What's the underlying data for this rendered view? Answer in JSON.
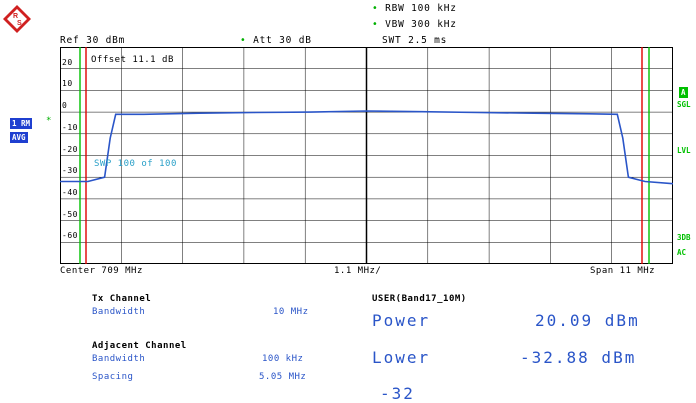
{
  "header": {
    "rbw": "RBW 100 kHz",
    "vbw": "VBW 300 kHz",
    "swt": "SWT 2.5 ms",
    "ref": "Ref  30 dBm",
    "att": "Att  30 dB",
    "offset": "Offset  11.1 dB",
    "sweep": "SWP   100 of   100"
  },
  "left_labels": {
    "trace": "1 RM",
    "avg": "AVG"
  },
  "right_labels": {
    "a": "A",
    "sgl": "SGL",
    "lvl": "LVL",
    "db3": "3DB",
    "ac": "AC"
  },
  "y_ticks": [
    "20",
    "10",
    "0",
    "-10",
    "-20",
    "-30",
    "-40",
    "-50",
    "-60"
  ],
  "footer": {
    "center": "Center 709 MHz",
    "div": "1.1 MHz/",
    "span": "Span 11 MHz"
  },
  "tx": {
    "title": "Tx Channel",
    "bw_label": "Bandwidth",
    "bw_value": "10 MHz"
  },
  "adj": {
    "title": "Adjacent Channel",
    "bw_label": "Bandwidth",
    "bw_value": "100 kHz",
    "sp_label": "Spacing",
    "sp_value": "5.05 MHz"
  },
  "results": {
    "title": "USER(Band17_10M)",
    "power_label": "Power",
    "power_value": "20.09 dBm",
    "lower_label": "Lower",
    "lower_value": "-32.88 dBm",
    "upper_partial": "-32"
  },
  "colors": {
    "trace": "#2a55c8",
    "green_line": "#00c000",
    "red_line": "#e00000",
    "grid": "#000000"
  },
  "chart_data": {
    "type": "line",
    "x_center_mhz": 709,
    "span_mhz": 11,
    "ylim": [
      -70,
      30
    ],
    "series": [
      {
        "x": [
          703.5,
          704.0,
          704.3,
          704.4,
          704.5,
          705.0,
          706.0,
          707.0,
          708.0,
          709.0,
          710.0,
          711.0,
          712.0,
          713.0,
          713.5,
          713.6,
          713.7,
          714.0,
          714.5
        ],
        "values": [
          -32,
          -32,
          -30,
          -12,
          -1,
          -1,
          -0.5,
          -0.2,
          0,
          0.5,
          0.2,
          -0.2,
          -0.5,
          -0.8,
          -1,
          -12,
          -30,
          -32,
          -33
        ]
      }
    ]
  }
}
